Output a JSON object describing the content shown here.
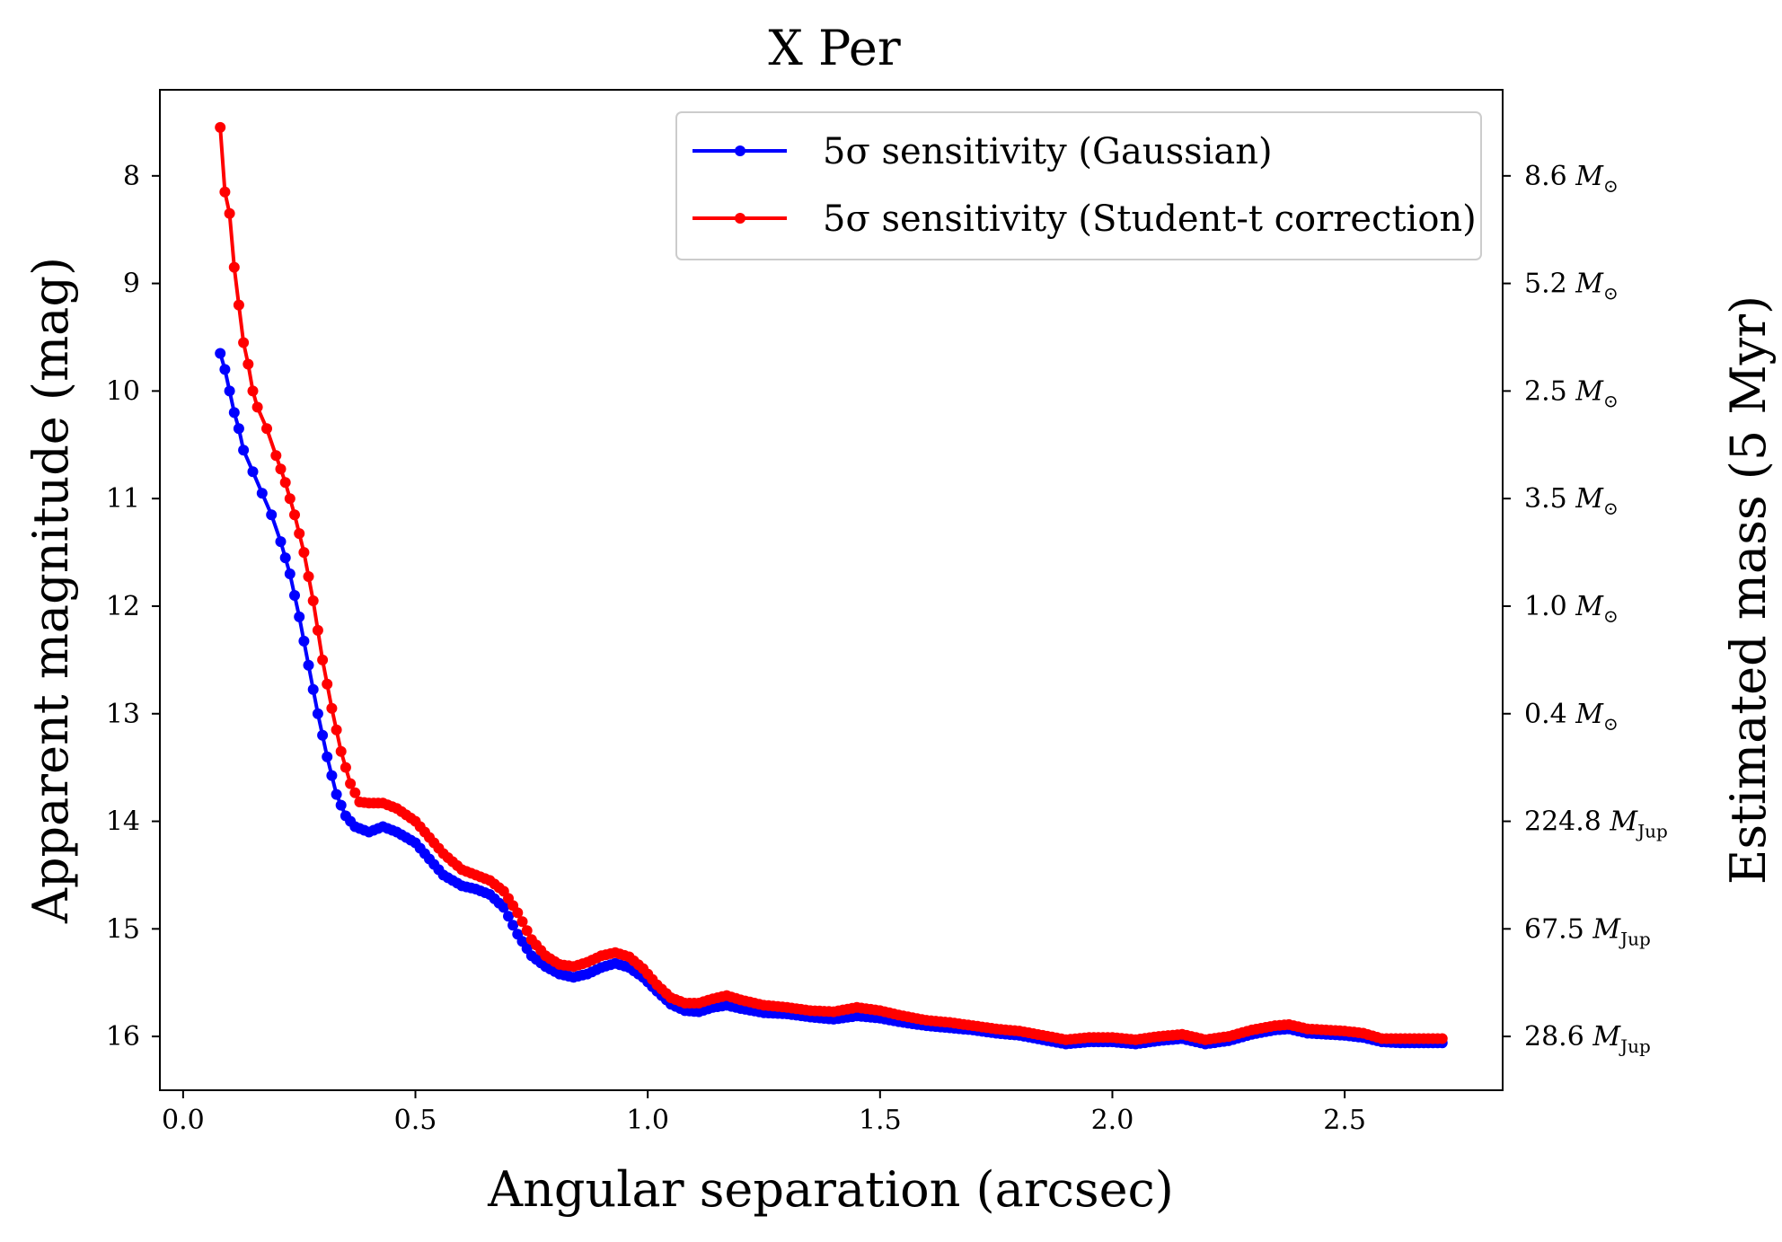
{
  "chart_data": {
    "type": "line",
    "title": "X Per",
    "xlabel": "Angular separation (arcsec)",
    "ylabel": "Apparent magnitude (mag)",
    "y2label": "Estimated mass (5 Myr)",
    "xlim": [
      -0.05,
      2.84
    ],
    "ylim": [
      16.5,
      7.2
    ],
    "y_inverted": true,
    "xticks": [
      0.0,
      0.5,
      1.0,
      1.5,
      2.0,
      2.5
    ],
    "xtick_labels": [
      "0.0",
      "0.5",
      "1.0",
      "1.5",
      "2.0",
      "2.5"
    ],
    "yticks": [
      8,
      9,
      10,
      11,
      12,
      13,
      14,
      15,
      16
    ],
    "ytick_labels": [
      "8",
      "9",
      "10",
      "11",
      "12",
      "13",
      "14",
      "15",
      "16"
    ],
    "y2_ticks": [
      {
        "mag": 8,
        "value": "8.6",
        "unit": "M",
        "sub": "⊙"
      },
      {
        "mag": 9,
        "value": "5.2",
        "unit": "M",
        "sub": "⊙"
      },
      {
        "mag": 10,
        "value": "2.5",
        "unit": "M",
        "sub": "⊙"
      },
      {
        "mag": 11,
        "value": "3.5",
        "unit": "M",
        "sub": "⊙"
      },
      {
        "mag": 12,
        "value": "1.0",
        "unit": "M",
        "sub": "⊙"
      },
      {
        "mag": 13,
        "value": "0.4",
        "unit": "M",
        "sub": "⊙"
      },
      {
        "mag": 14,
        "value": "224.8",
        "unit": "M",
        "sub": "Jup"
      },
      {
        "mag": 15,
        "value": "67.5",
        "unit": "M",
        "sub": "Jup"
      },
      {
        "mag": 16,
        "value": "28.6",
        "unit": "M",
        "sub": "Jup"
      }
    ],
    "legend_position": "top-right",
    "series": [
      {
        "name": "5σ sensitivity (Gaussian)",
        "color": "#0000ff",
        "points": [
          [
            0.08,
            9.65
          ],
          [
            0.09,
            9.8
          ],
          [
            0.1,
            10.0
          ],
          [
            0.11,
            10.2
          ],
          [
            0.12,
            10.35
          ],
          [
            0.13,
            10.55
          ],
          [
            0.15,
            10.75
          ],
          [
            0.17,
            10.95
          ],
          [
            0.19,
            11.15
          ],
          [
            0.21,
            11.4
          ],
          [
            0.23,
            11.7
          ],
          [
            0.25,
            12.1
          ],
          [
            0.27,
            12.55
          ],
          [
            0.29,
            13.0
          ],
          [
            0.31,
            13.4
          ],
          [
            0.33,
            13.75
          ],
          [
            0.35,
            13.95
          ],
          [
            0.37,
            14.05
          ],
          [
            0.4,
            14.1
          ],
          [
            0.43,
            14.05
          ],
          [
            0.46,
            14.1
          ],
          [
            0.5,
            14.2
          ],
          [
            0.53,
            14.35
          ],
          [
            0.56,
            14.5
          ],
          [
            0.6,
            14.6
          ],
          [
            0.63,
            14.63
          ],
          [
            0.66,
            14.68
          ],
          [
            0.69,
            14.8
          ],
          [
            0.72,
            15.05
          ],
          [
            0.75,
            15.25
          ],
          [
            0.78,
            15.35
          ],
          [
            0.81,
            15.42
          ],
          [
            0.84,
            15.45
          ],
          [
            0.87,
            15.42
          ],
          [
            0.9,
            15.36
          ],
          [
            0.93,
            15.32
          ],
          [
            0.96,
            15.36
          ],
          [
            0.99,
            15.45
          ],
          [
            1.02,
            15.58
          ],
          [
            1.05,
            15.7
          ],
          [
            1.08,
            15.76
          ],
          [
            1.11,
            15.77
          ],
          [
            1.14,
            15.73
          ],
          [
            1.17,
            15.71
          ],
          [
            1.2,
            15.74
          ],
          [
            1.25,
            15.78
          ],
          [
            1.3,
            15.79
          ],
          [
            1.35,
            15.82
          ],
          [
            1.4,
            15.84
          ],
          [
            1.45,
            15.81
          ],
          [
            1.5,
            15.83
          ],
          [
            1.55,
            15.87
          ],
          [
            1.6,
            15.9
          ],
          [
            1.65,
            15.92
          ],
          [
            1.7,
            15.94
          ],
          [
            1.75,
            15.97
          ],
          [
            1.8,
            15.99
          ],
          [
            1.85,
            16.03
          ],
          [
            1.9,
            16.07
          ],
          [
            1.95,
            16.05
          ],
          [
            2.0,
            16.05
          ],
          [
            2.05,
            16.07
          ],
          [
            2.1,
            16.04
          ],
          [
            2.15,
            16.02
          ],
          [
            2.2,
            16.07
          ],
          [
            2.25,
            16.04
          ],
          [
            2.3,
            15.98
          ],
          [
            2.35,
            15.94
          ],
          [
            2.38,
            15.93
          ],
          [
            2.42,
            15.97
          ],
          [
            2.46,
            15.98
          ],
          [
            2.5,
            15.99
          ],
          [
            2.54,
            16.01
          ],
          [
            2.58,
            16.05
          ],
          [
            2.62,
            16.06
          ],
          [
            2.66,
            16.06
          ],
          [
            2.71,
            16.06
          ]
        ]
      },
      {
        "name": "5σ sensitivity (Student-t correction)",
        "color": "#ff0000",
        "points": [
          [
            0.08,
            7.55
          ],
          [
            0.09,
            8.15
          ],
          [
            0.1,
            8.35
          ],
          [
            0.11,
            8.85
          ],
          [
            0.12,
            9.2
          ],
          [
            0.13,
            9.55
          ],
          [
            0.14,
            9.75
          ],
          [
            0.15,
            10.0
          ],
          [
            0.16,
            10.15
          ],
          [
            0.18,
            10.35
          ],
          [
            0.2,
            10.6
          ],
          [
            0.22,
            10.85
          ],
          [
            0.24,
            11.15
          ],
          [
            0.26,
            11.5
          ],
          [
            0.28,
            11.95
          ],
          [
            0.3,
            12.5
          ],
          [
            0.32,
            12.95
          ],
          [
            0.34,
            13.35
          ],
          [
            0.36,
            13.65
          ],
          [
            0.38,
            13.82
          ],
          [
            0.4,
            13.83
          ],
          [
            0.43,
            13.83
          ],
          [
            0.46,
            13.88
          ],
          [
            0.5,
            14.0
          ],
          [
            0.53,
            14.15
          ],
          [
            0.56,
            14.3
          ],
          [
            0.6,
            14.45
          ],
          [
            0.63,
            14.5
          ],
          [
            0.66,
            14.55
          ],
          [
            0.69,
            14.65
          ],
          [
            0.72,
            14.85
          ],
          [
            0.75,
            15.1
          ],
          [
            0.78,
            15.25
          ],
          [
            0.81,
            15.33
          ],
          [
            0.84,
            15.35
          ],
          [
            0.87,
            15.31
          ],
          [
            0.9,
            15.25
          ],
          [
            0.93,
            15.22
          ],
          [
            0.96,
            15.26
          ],
          [
            0.99,
            15.37
          ],
          [
            1.02,
            15.52
          ],
          [
            1.05,
            15.64
          ],
          [
            1.08,
            15.69
          ],
          [
            1.11,
            15.69
          ],
          [
            1.14,
            15.65
          ],
          [
            1.17,
            15.62
          ],
          [
            1.2,
            15.66
          ],
          [
            1.25,
            15.71
          ],
          [
            1.3,
            15.73
          ],
          [
            1.35,
            15.76
          ],
          [
            1.4,
            15.77
          ],
          [
            1.45,
            15.73
          ],
          [
            1.5,
            15.76
          ],
          [
            1.55,
            15.81
          ],
          [
            1.6,
            15.85
          ],
          [
            1.65,
            15.87
          ],
          [
            1.7,
            15.9
          ],
          [
            1.75,
            15.93
          ],
          [
            1.8,
            15.95
          ],
          [
            1.85,
            15.99
          ],
          [
            1.9,
            16.03
          ],
          [
            1.95,
            16.01
          ],
          [
            2.0,
            16.01
          ],
          [
            2.05,
            16.03
          ],
          [
            2.1,
            16.0
          ],
          [
            2.15,
            15.98
          ],
          [
            2.2,
            16.03
          ],
          [
            2.25,
            16.0
          ],
          [
            2.3,
            15.94
          ],
          [
            2.35,
            15.9
          ],
          [
            2.38,
            15.89
          ],
          [
            2.42,
            15.93
          ],
          [
            2.46,
            15.94
          ],
          [
            2.5,
            15.95
          ],
          [
            2.54,
            15.97
          ],
          [
            2.58,
            16.02
          ],
          [
            2.62,
            16.02
          ],
          [
            2.66,
            16.02
          ],
          [
            2.71,
            16.02
          ]
        ]
      }
    ]
  }
}
